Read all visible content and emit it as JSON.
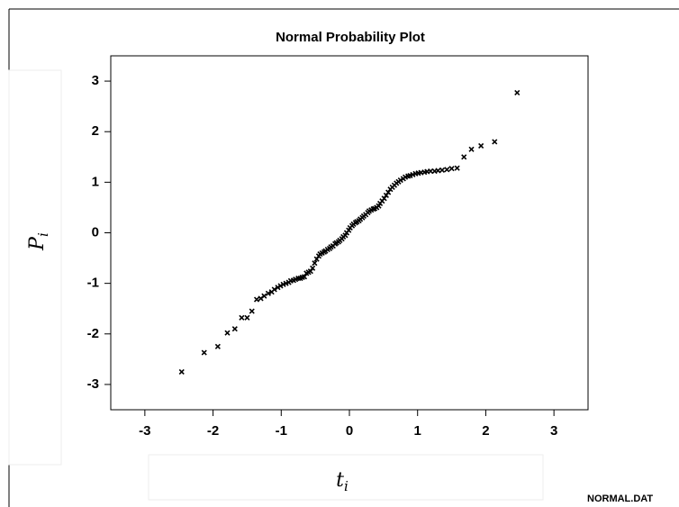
{
  "chart_data": {
    "type": "scatter",
    "title": "Normal Probability Plot",
    "y_label": "P",
    "y_label_sub": "i",
    "x_label": "t",
    "x_label_sub": "i",
    "footer": "NORMAL.DAT",
    "color": "#000000",
    "xlim": [
      -3.5,
      3.5
    ],
    "ylim": [
      -3.5,
      3.5
    ],
    "xticks": [
      -3,
      -2,
      -1,
      0,
      1,
      2,
      3
    ],
    "yticks": [
      -3,
      -2,
      -1,
      0,
      1,
      2,
      3
    ],
    "x": [
      -2.46,
      -2.13,
      -1.93,
      -1.79,
      -1.68,
      -1.58,
      -1.5,
      -1.43,
      -1.36,
      -1.3,
      -1.25,
      -1.19,
      -1.14,
      -1.1,
      -1.05,
      -1.01,
      -0.97,
      -0.93,
      -0.89,
      -0.86,
      -0.82,
      -0.79,
      -0.75,
      -0.72,
      -0.69,
      -0.66,
      -0.63,
      -0.6,
      -0.57,
      -0.54,
      -0.51,
      -0.48,
      -0.45,
      -0.43,
      -0.4,
      -0.37,
      -0.35,
      -0.32,
      -0.29,
      -0.27,
      -0.24,
      -0.21,
      -0.19,
      -0.16,
      -0.14,
      -0.11,
      -0.09,
      -0.06,
      -0.04,
      -0.01,
      0.01,
      0.04,
      0.06,
      0.09,
      0.11,
      0.14,
      0.16,
      0.19,
      0.21,
      0.24,
      0.27,
      0.29,
      0.32,
      0.35,
      0.37,
      0.4,
      0.43,
      0.45,
      0.48,
      0.51,
      0.54,
      0.57,
      0.6,
      0.63,
      0.66,
      0.69,
      0.72,
      0.75,
      0.79,
      0.82,
      0.86,
      0.89,
      0.93,
      0.97,
      1.01,
      1.05,
      1.1,
      1.14,
      1.19,
      1.25,
      1.3,
      1.36,
      1.43,
      1.5,
      1.58,
      1.68,
      1.79,
      1.93,
      2.13,
      2.46
    ],
    "values": [
      -2.75,
      -2.37,
      -2.25,
      -1.98,
      -1.9,
      -1.68,
      -1.68,
      -1.55,
      -1.32,
      -1.3,
      -1.25,
      -1.2,
      -1.17,
      -1.12,
      -1.08,
      -1.05,
      -1.02,
      -1.0,
      -0.98,
      -0.95,
      -0.94,
      -0.92,
      -0.9,
      -0.9,
      -0.88,
      -0.87,
      -0.8,
      -0.78,
      -0.76,
      -0.7,
      -0.6,
      -0.52,
      -0.46,
      -0.42,
      -0.4,
      -0.38,
      -0.36,
      -0.33,
      -0.31,
      -0.28,
      -0.26,
      -0.22,
      -0.2,
      -0.18,
      -0.15,
      -0.12,
      -0.08,
      -0.05,
      0.0,
      0.05,
      0.1,
      0.14,
      0.17,
      0.2,
      0.22,
      0.24,
      0.27,
      0.3,
      0.33,
      0.36,
      0.4,
      0.43,
      0.45,
      0.47,
      0.48,
      0.5,
      0.53,
      0.58,
      0.63,
      0.68,
      0.74,
      0.8,
      0.86,
      0.9,
      0.94,
      0.98,
      1.01,
      1.04,
      1.07,
      1.1,
      1.12,
      1.13,
      1.15,
      1.17,
      1.18,
      1.19,
      1.2,
      1.21,
      1.22,
      1.22,
      1.23,
      1.24,
      1.25,
      1.27,
      1.28,
      1.5,
      1.65,
      1.72,
      1.8,
      2.77
    ]
  }
}
